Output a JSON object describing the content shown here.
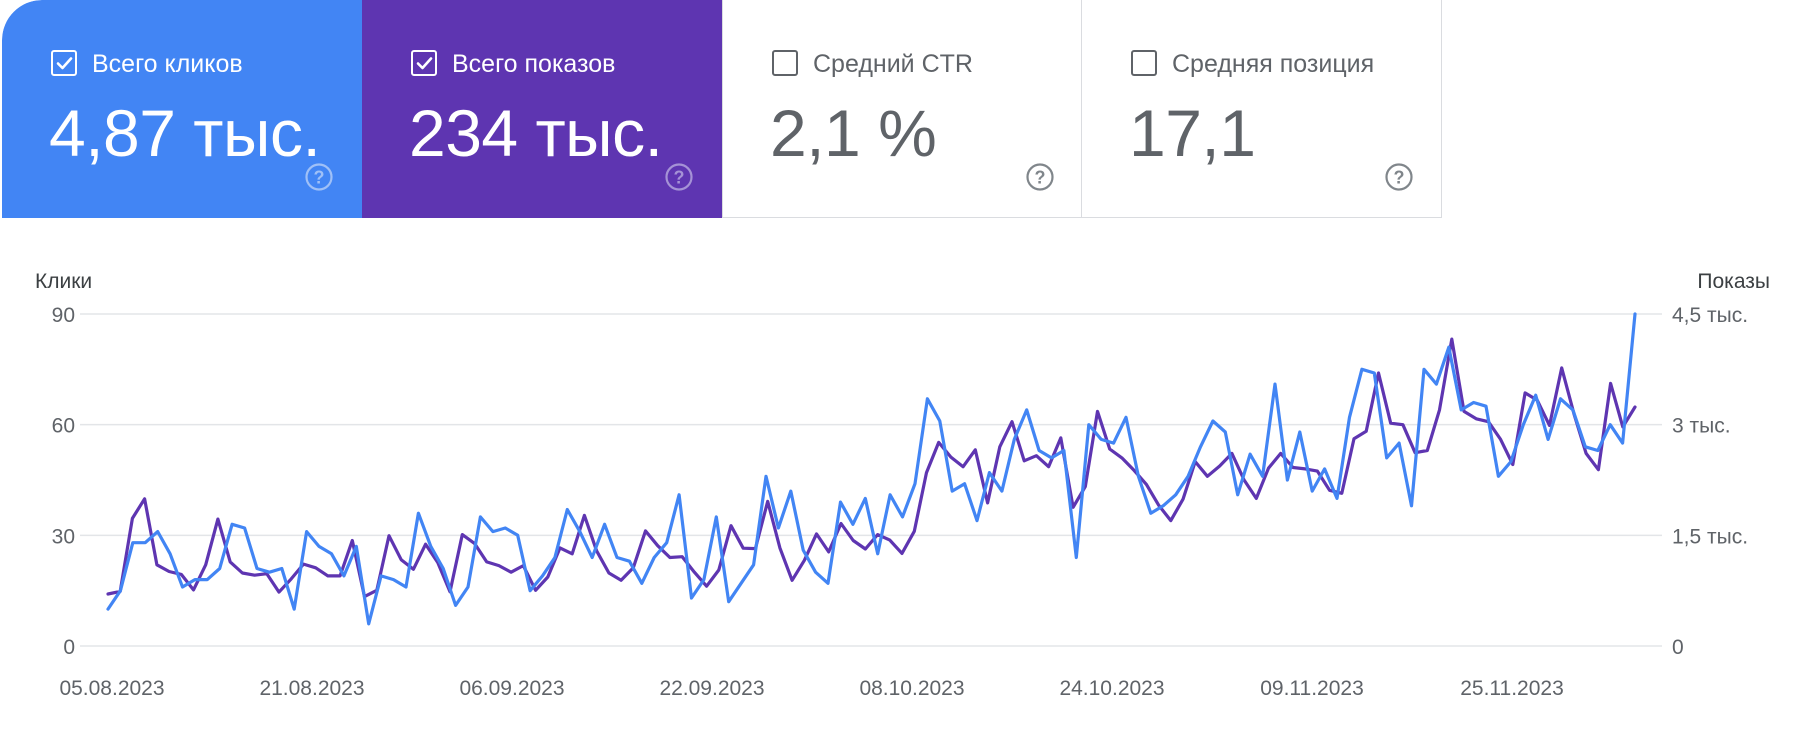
{
  "metrics": [
    {
      "label": "Всего кликов",
      "value": "4,87 тыс.",
      "checked": true,
      "color": "#4285f4"
    },
    {
      "label": "Всего показов",
      "value": "234 тыс.",
      "checked": true,
      "color": "#5e35b1"
    },
    {
      "label": "Средний CTR",
      "value": "2,1 %",
      "checked": false,
      "color": "#ffffff"
    },
    {
      "label": "Средняя позиция",
      "value": "17,1",
      "checked": false,
      "color": "#ffffff"
    }
  ],
  "chart_data": {
    "type": "line",
    "left_axis_title": "Клики",
    "right_axis_title": "Показы",
    "left_ticks": [
      "0",
      "30",
      "60",
      "90"
    ],
    "right_ticks": [
      "0",
      "1,5 тыс.",
      "3 тыс.",
      "4,5 тыс."
    ],
    "ylim_left": [
      0,
      90
    ],
    "ylim_right": [
      0,
      4500
    ],
    "x_ticks": [
      "05.08.2023",
      "21.08.2023",
      "06.09.2023",
      "22.09.2023",
      "08.10.2023",
      "24.10.2023",
      "09.11.2023",
      "25.11.2023"
    ],
    "grid": true,
    "series": [
      {
        "name": "Всего показов",
        "axis": "right",
        "color": "#5e35b1",
        "values": [
          705,
          740,
          1730,
          1995,
          1100,
          1010,
          970,
          760,
          1100,
          1720,
          1140,
          990,
          960,
          980,
          730,
          910,
          1110,
          1060,
          950,
          950,
          1430,
          670,
          755,
          1495,
          1170,
          1040,
          1380,
          1130,
          735,
          1510,
          1390,
          1140,
          1090,
          1000,
          1090,
          755,
          935,
          1330,
          1250,
          1770,
          1290,
          990,
          890,
          1060,
          1560,
          1360,
          1200,
          1210,
          1000,
          810,
          1030,
          1630,
          1325,
          1320,
          1960,
          1330,
          890,
          1160,
          1520,
          1275,
          1660,
          1430,
          1315,
          1510,
          1435,
          1255,
          1555,
          2350,
          2760,
          2560,
          2430,
          2660,
          1940,
          2700,
          3040,
          2510,
          2580,
          2430,
          2820,
          1880,
          2160,
          3180,
          2670,
          2550,
          2380,
          2190,
          1910,
          1700,
          1990,
          2500,
          2300,
          2440,
          2610,
          2250,
          2000,
          2410,
          2610,
          2420,
          2400,
          2370,
          2110,
          2070,
          2810,
          2910,
          3700,
          3020,
          3000,
          2620,
          2650,
          3200,
          4160,
          3180,
          3080,
          3040,
          2800,
          2460,
          3430,
          3330,
          2990,
          3770,
          3150,
          2610,
          2390,
          3560,
          2970,
          3240
        ],
        "name_visible": false
      },
      {
        "name": "Всего кликов",
        "axis": "left",
        "color": "#4285f4",
        "values": [
          10,
          15,
          28,
          28,
          31,
          25,
          16,
          18,
          18,
          21,
          33,
          32,
          21,
          20,
          21,
          10,
          31,
          27,
          25,
          19,
          27,
          6,
          19,
          18,
          16,
          36,
          27,
          21,
          11,
          16,
          35,
          31,
          32,
          30,
          15,
          19,
          24,
          37,
          31,
          24,
          33,
          24,
          23,
          17,
          24,
          28,
          41,
          13,
          18,
          35,
          12,
          17,
          22,
          46,
          32,
          42,
          26,
          20,
          17,
          39,
          33,
          40,
          25,
          41,
          35,
          44,
          67,
          61,
          42,
          44,
          34,
          47,
          42,
          56,
          64,
          53,
          51,
          53,
          24,
          60,
          56,
          55,
          62,
          46,
          36,
          38,
          41,
          46,
          54,
          61,
          58,
          41,
          52,
          46,
          71,
          45,
          58,
          42,
          48,
          40,
          62,
          75,
          74,
          51,
          55,
          38,
          75,
          71,
          81,
          64,
          66,
          65,
          46,
          50,
          60,
          68,
          56,
          67,
          64,
          54,
          53,
          60,
          55,
          90
        ],
        "name_visible": false
      }
    ]
  }
}
